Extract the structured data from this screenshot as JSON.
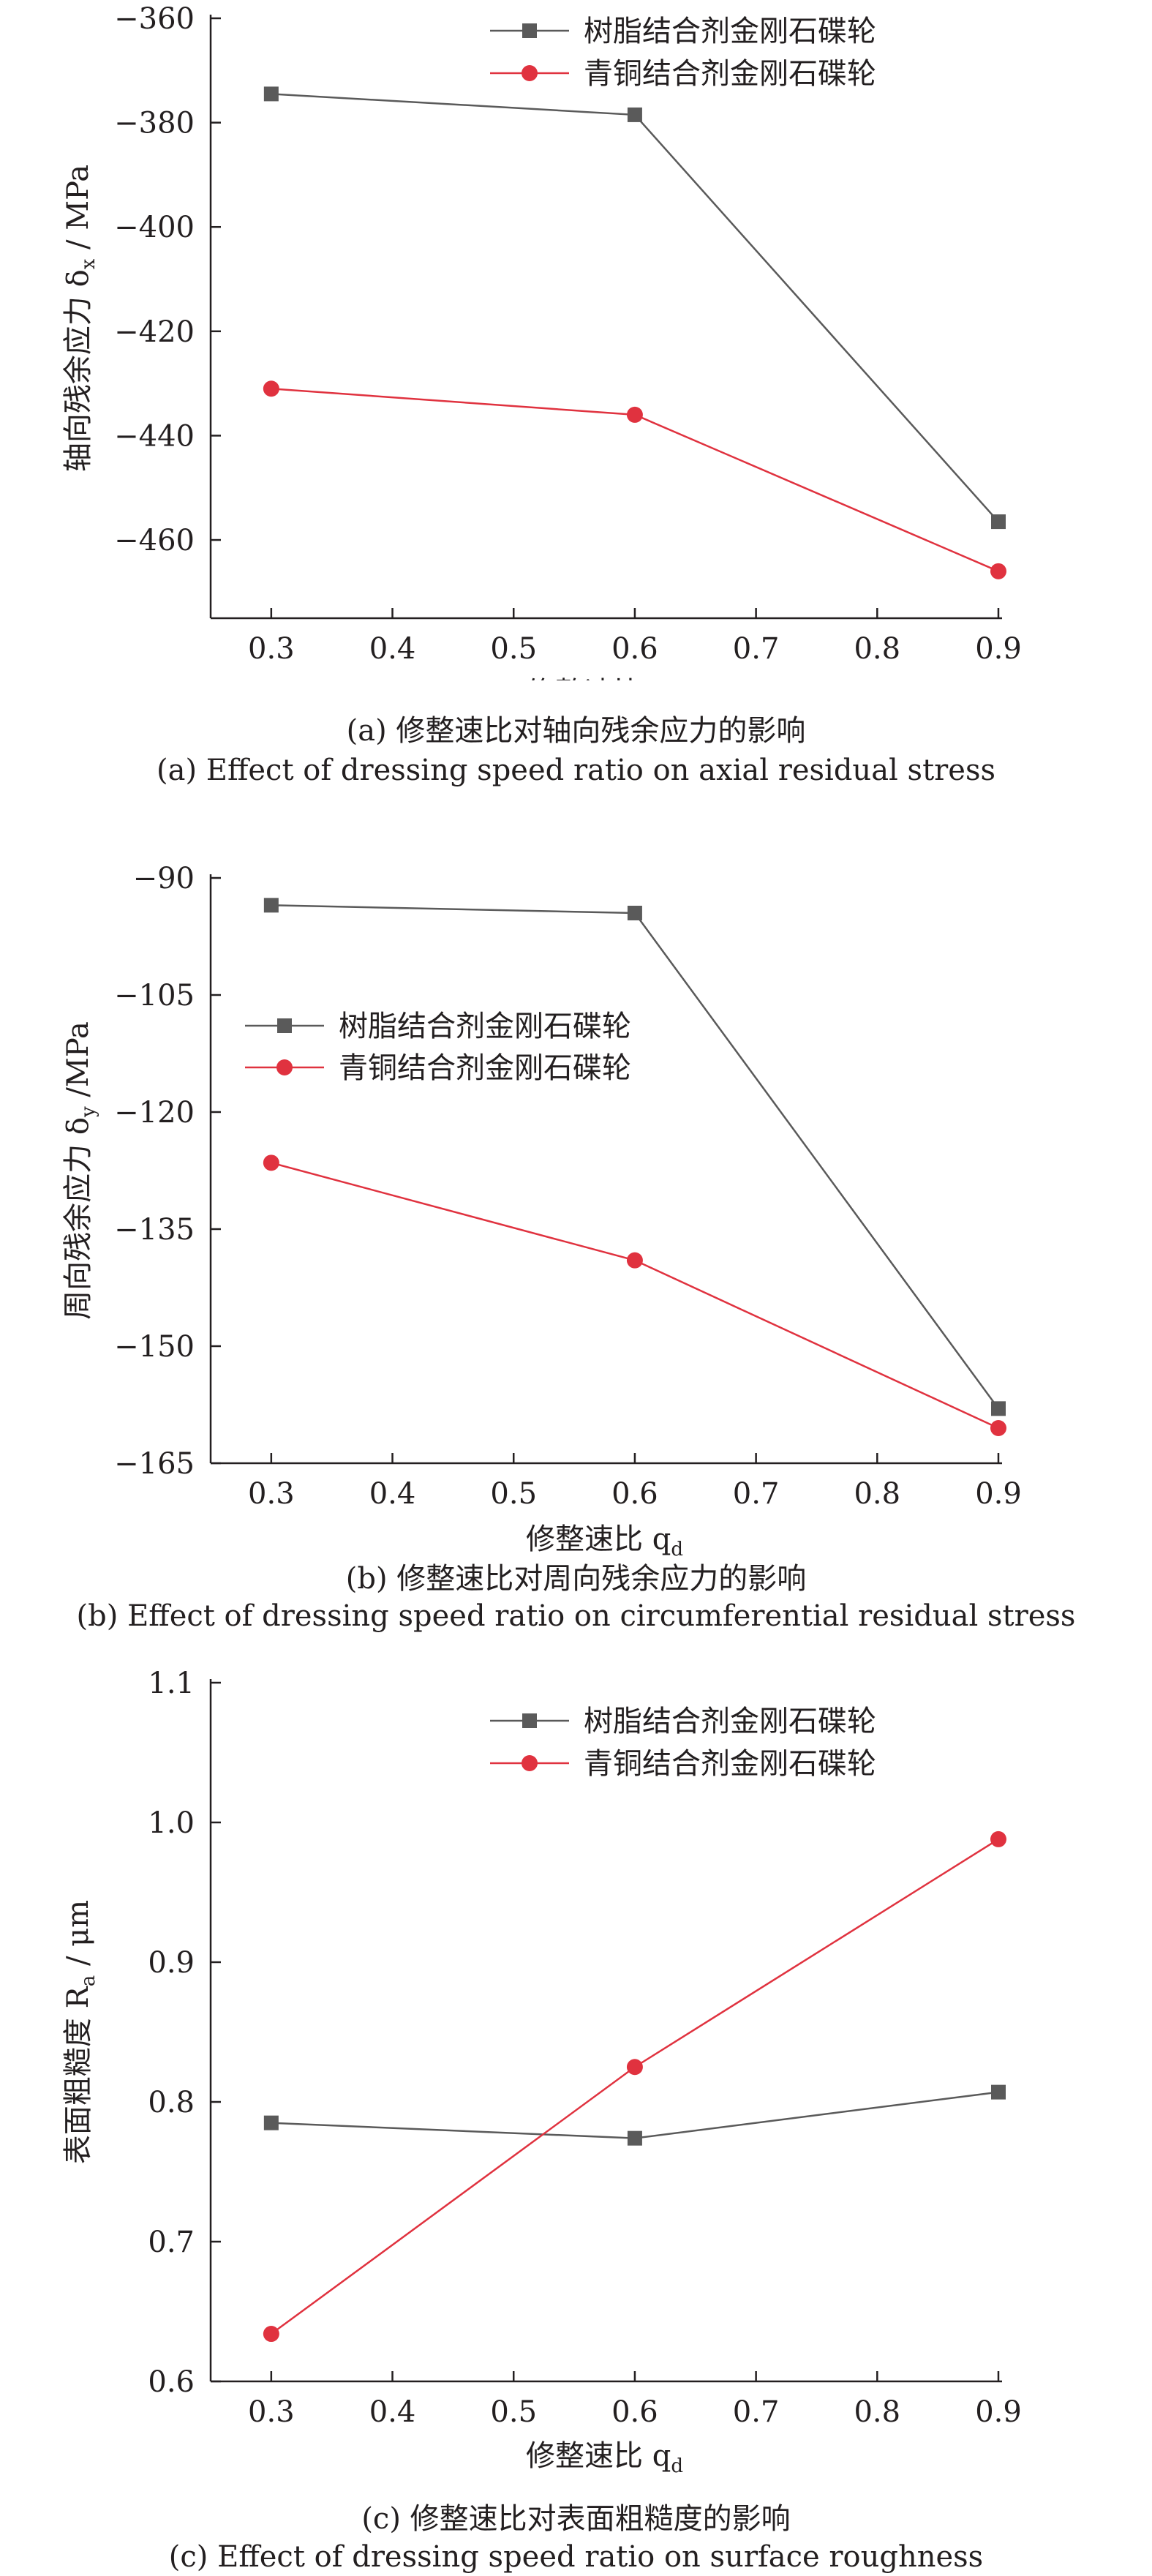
{
  "colors": {
    "resin": "#5a5a5a",
    "bronze": "#e0323f",
    "axis": "#231f20"
  },
  "legend_labels": [
    "树脂结合剂金刚石碟轮",
    "青铜结合剂金刚石碟轮"
  ],
  "chart_data": [
    {
      "type": "line",
      "x": [
        0.3,
        0.6,
        0.9
      ],
      "xticks": [
        "0.3",
        "0.4",
        "0.5",
        "0.6",
        "0.7",
        "0.8",
        "0.9"
      ],
      "yticks": [
        "−360",
        "−380",
        "−400",
        "−420",
        "−440",
        "−460"
      ],
      "xlabel": "修整速比 q",
      "xlabel_sub": "d",
      "ylabel_pre": "轴向残余应力 δ",
      "ylabel_sub": "x",
      "ylabel_post": " / MPa",
      "caption_cn": "(a) 修整速比对轴向残余应力的影响",
      "caption_en": "(a) Effect of dressing speed ratio on axial residual stress",
      "xlim": [
        0.25,
        0.9
      ],
      "ylim": [
        -475,
        -360
      ],
      "legend_position": "top-right",
      "series": [
        {
          "name": "树脂结合剂金刚石碟轮",
          "marker": "square",
          "values": [
            -374.5,
            -378.5,
            -456.5
          ]
        },
        {
          "name": "青铜结合剂金刚石碟轮",
          "marker": "circle",
          "values": [
            -431,
            -436,
            -466
          ]
        }
      ]
    },
    {
      "type": "line",
      "x": [
        0.3,
        0.6,
        0.9
      ],
      "xticks": [
        "0.3",
        "0.4",
        "0.5",
        "0.6",
        "0.7",
        "0.8",
        "0.9"
      ],
      "yticks": [
        "−90",
        "−105",
        "−120",
        "−135",
        "−150",
        "−165"
      ],
      "xlabel": "修整速比 q",
      "xlabel_sub": "d",
      "ylabel_pre": "周向残余应力 δ",
      "ylabel_sub": "y",
      "ylabel_post": " /MPa",
      "caption_cn": "(b) 修整速比对周向残余应力的影响",
      "caption_en": "(b) Effect of dressing speed ratio on circumferential residual stress",
      "xlim": [
        0.25,
        0.9
      ],
      "ylim": [
        -165,
        -90
      ],
      "legend_position": "middle-left",
      "series": [
        {
          "name": "树脂结合剂金刚石碟轮",
          "marker": "square",
          "values": [
            -93.5,
            -94.5,
            -158
          ]
        },
        {
          "name": "青铜结合剂金刚石碟轮",
          "marker": "circle",
          "values": [
            -126.5,
            -139,
            -160.5
          ]
        }
      ]
    },
    {
      "type": "line",
      "x": [
        0.3,
        0.6,
        0.9
      ],
      "xticks": [
        "0.3",
        "0.4",
        "0.5",
        "0.6",
        "0.7",
        "0.8",
        "0.9"
      ],
      "yticks": [
        "1.1",
        "1.0",
        "0.9",
        "0.8",
        "0.7",
        "0.6"
      ],
      "xlabel": "修整速比 q",
      "xlabel_sub": "d",
      "ylabel_pre": "表面粗糙度 R",
      "ylabel_sub": "a",
      "ylabel_post": " / μm",
      "caption_cn": "(c) 修整速比对表面粗糙度的影响",
      "caption_en": "(c) Effect of dressing speed ratio on surface roughness",
      "xlim": [
        0.25,
        0.9
      ],
      "ylim": [
        0.6,
        1.1
      ],
      "legend_position": "top-right",
      "series": [
        {
          "name": "树脂结合剂金刚石碟轮",
          "marker": "square",
          "values": [
            0.785,
            0.774,
            0.807
          ]
        },
        {
          "name": "青铜结合剂金刚石碟轮",
          "marker": "circle",
          "values": [
            0.634,
            0.825,
            0.988
          ]
        }
      ]
    }
  ]
}
